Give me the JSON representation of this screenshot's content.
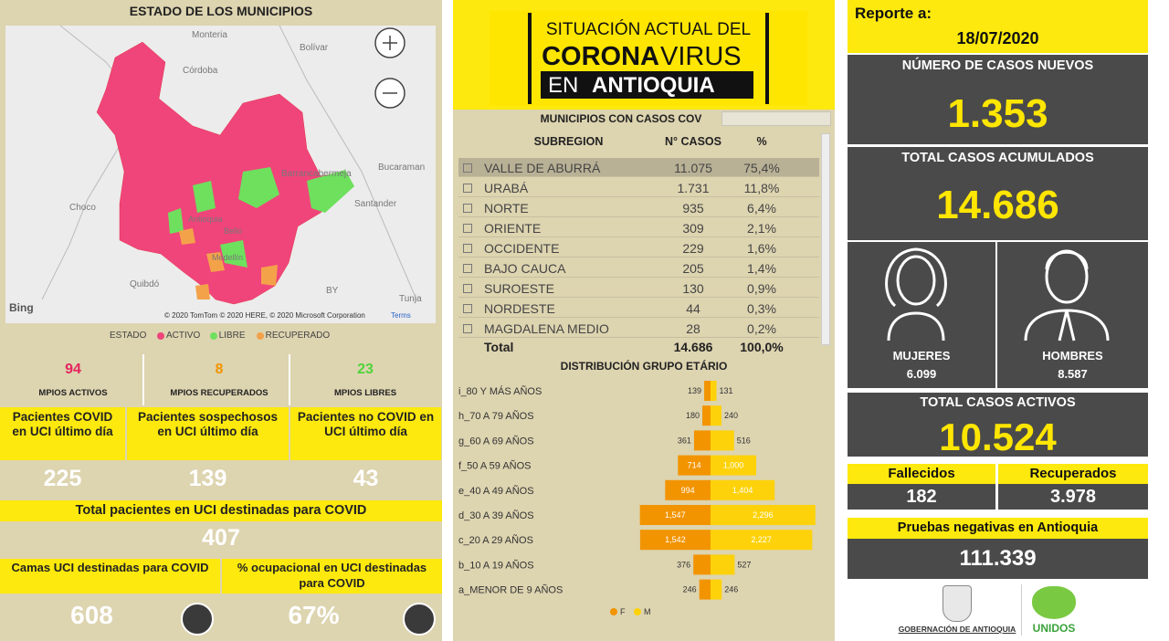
{
  "map": {
    "title": "ESTADO DE LOS MUNICIPIOS",
    "places": [
      "Monteria",
      "Bolívar",
      "Córdoba",
      "Barrancabermeja",
      "Bucaraman",
      "Choco",
      "Santander",
      "Antioquia",
      "Bello",
      "Medellín",
      "Quibdó",
      "BY",
      "Tunja"
    ],
    "bing": "Bing",
    "attribution": "© 2020 TomTom © 2020 HERE, © 2020 Microsoft Corporation",
    "terms": "Terms",
    "legend_title": "ESTADO",
    "legend": [
      {
        "name": "ACTIVO",
        "color": "#f0457a"
      },
      {
        "name": "LIBRE",
        "color": "#6ee05e"
      },
      {
        "name": "RECUPERADO",
        "color": "#f4a24a"
      }
    ]
  },
  "mpios": [
    {
      "value": "94",
      "label": "MPIOS ACTIVOS",
      "color": "#e6245e"
    },
    {
      "value": "8",
      "label": "MPIOS RECUPERADOS",
      "color": "#f29400"
    },
    {
      "value": "23",
      "label": "MPIOS LIBRES",
      "color": "#4fd43a"
    }
  ],
  "uci": [
    {
      "label": "Pacientes COVID en UCI último día",
      "value": "225"
    },
    {
      "label": "Pacientes sospechosos en UCI último día",
      "value": "139"
    },
    {
      "label": "Pacientes no COVID en UCI último día",
      "value": "43"
    }
  ],
  "uci_total": {
    "label": "Total pacientes en UCI destinadas para COVID",
    "value": "407"
  },
  "camas": [
    {
      "label": "Camas UCI destinadas para COVID",
      "value": "608"
    },
    {
      "label": "% ocupacional en UCI destinadas para COVID",
      "value": "67%"
    }
  ],
  "banner": {
    "line1": "SITUACIÓN ACTUAL DEL",
    "corona": "CORONA",
    "virus": "VIRUS",
    "en": "EN",
    "antioquia": "ANTIOQUIA"
  },
  "table": {
    "title": "MUNICIPIOS CON CASOS COV",
    "columns": [
      "SUBREGION",
      "N° CASOS",
      "%"
    ],
    "rows": [
      [
        "VALLE DE ABURRÁ",
        "11.075",
        "75,4%"
      ],
      [
        "URABÁ",
        "1.731",
        "11,8%"
      ],
      [
        "NORTE",
        "935",
        "6,4%"
      ],
      [
        "ORIENTE",
        "309",
        "2,1%"
      ],
      [
        "OCCIDENTE",
        "229",
        "1,6%"
      ],
      [
        "BAJO CAUCA",
        "205",
        "1,4%"
      ],
      [
        "SUROESTE",
        "130",
        "0,9%"
      ],
      [
        "NORDESTE",
        "44",
        "0,3%"
      ],
      [
        "MAGDALENA MEDIO",
        "28",
        "0,2%"
      ]
    ],
    "total": [
      "Total",
      "14.686",
      "100,0%"
    ]
  },
  "chart_data": {
    "type": "pyramid",
    "title": "DISTRIBUCIÓN GRUPO ETÁRIO",
    "categories": [
      "i_80 Y MÁS AÑOS",
      "h_70 A 79 AÑOS",
      "g_60 A 69 AÑOS",
      "f_50 A 59 AÑOS",
      "e_40 A 49 AÑOS",
      "d_30 A 39 AÑOS",
      "c_20 A 29 AÑOS",
      "b_10 A 19 AÑOS",
      "a_MENOR DE 9 AÑOS"
    ],
    "xlim": [
      0,
      2400
    ],
    "series": [
      {
        "name": "F",
        "color": "#f29400",
        "values": [
          139,
          180,
          361,
          714,
          994,
          1547,
          1542,
          376,
          246
        ],
        "value_labels": [
          "139",
          "180",
          "361",
          "714",
          "994",
          "1,547",
          "1,542",
          "376",
          "246"
        ]
      },
      {
        "name": "M",
        "color": "#fdd20a",
        "values": [
          131,
          240,
          516,
          1000,
          1404,
          2296,
          2227,
          527,
          246
        ],
        "value_labels": [
          "131",
          "240",
          "516",
          "1,000",
          "1,404",
          "2,296",
          "2,227",
          "527",
          "246"
        ]
      }
    ]
  },
  "report": {
    "label": "Reporte a:",
    "date": "18/07/2020",
    "new_cases": {
      "label": "NÚMERO DE CASOS NUEVOS",
      "value": "1.353"
    },
    "total_cases": {
      "label": "TOTAL CASOS ACUMULADOS",
      "value": "14.686"
    },
    "women": {
      "label": "MUJERES",
      "value": "6.099"
    },
    "men": {
      "label": "HOMBRES",
      "value": "8.587"
    },
    "active": {
      "label": "TOTAL CASOS ACTIVOS",
      "value": "10.524"
    },
    "deaths": {
      "label": "Fallecidos",
      "value": "182"
    },
    "recovered": {
      "label": "Recuperados",
      "value": "3.978"
    },
    "negative": {
      "label": "Pruebas negativas en Antioquia",
      "value": "111.339"
    }
  },
  "logos": {
    "gobernacion": "GOBERNACIÓN DE ANTIOQUIA",
    "unidos": "UNIDOS"
  }
}
